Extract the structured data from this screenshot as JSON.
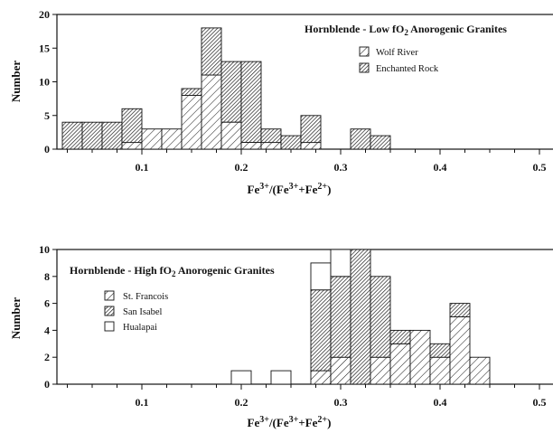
{
  "chart_data": [
    {
      "type": "bar",
      "stacked": true,
      "title": "Hornblende - Low fO",
      "title_sub": "2",
      "title_rest": " Anorogenic Granites",
      "xlabel_parts": [
        "Fe",
        "3+",
        "/(Fe",
        "3+",
        "+Fe",
        "2+",
        ")"
      ],
      "ylabel": "Number",
      "xlim": [
        0.0,
        0.5
      ],
      "ylim": [
        0,
        20
      ],
      "xticks": [
        0.1,
        0.2,
        0.3,
        0.4,
        0.5
      ],
      "xtick_labels": [
        "0.1",
        "0.2",
        "0.3",
        "0.4",
        "0.5"
      ],
      "yticks": [
        0,
        5,
        10,
        15,
        20
      ],
      "ytick_labels": [
        "0",
        "5",
        "10",
        "15",
        "20"
      ],
      "legend_position": "top-right",
      "bin_width": 0.02,
      "x": [
        0.03,
        0.05,
        0.07,
        0.09,
        0.11,
        0.13,
        0.15,
        0.17,
        0.19,
        0.21,
        0.23,
        0.25,
        0.27,
        0.29,
        0.32,
        0.34
      ],
      "series": [
        {
          "name": "Wolf River",
          "pattern": "hatch-sparse",
          "values": [
            0,
            0,
            0,
            1,
            3,
            3,
            8,
            11,
            4,
            1,
            1,
            0,
            1,
            0,
            0,
            0
          ]
        },
        {
          "name": "Enchanted Rock",
          "pattern": "hatch-dense",
          "values": [
            4,
            4,
            4,
            5,
            0,
            0,
            1,
            7,
            9,
            12,
            2,
            2,
            4,
            0,
            3,
            2
          ]
        }
      ]
    },
    {
      "type": "bar",
      "stacked": true,
      "title": "Hornblende - High fO",
      "title_sub": "2",
      "title_rest": " Anorogenic Granites",
      "xlabel_parts": [
        "Fe",
        "3+",
        "/(Fe",
        "3+",
        "+Fe",
        "2+",
        ")"
      ],
      "ylabel": "Number",
      "xlim": [
        0.0,
        0.5
      ],
      "ylim": [
        0,
        10
      ],
      "xticks": [
        0.1,
        0.2,
        0.3,
        0.4,
        0.5
      ],
      "xtick_labels": [
        "0.1",
        "0.2",
        "0.3",
        "0.4",
        "0.5"
      ],
      "yticks": [
        0,
        2,
        4,
        6,
        8,
        10
      ],
      "ytick_labels": [
        "0",
        "2",
        "4",
        "6",
        "8",
        "10"
      ],
      "legend_position": "top-left",
      "bin_width": 0.02,
      "x": [
        0.2,
        0.24,
        0.28,
        0.3,
        0.32,
        0.34,
        0.36,
        0.38,
        0.4,
        0.42,
        0.44
      ],
      "series": [
        {
          "name": "St. Francois",
          "pattern": "hatch-sparse",
          "values": [
            0,
            0,
            1,
            2,
            0,
            2,
            3,
            4,
            2,
            5,
            2
          ]
        },
        {
          "name": "San Isabel",
          "pattern": "hatch-dense",
          "values": [
            0,
            0,
            6,
            6,
            10,
            6,
            1,
            0,
            1,
            1,
            0
          ]
        },
        {
          "name": "Hualapai",
          "pattern": "empty",
          "values": [
            1,
            1,
            2,
            2,
            0,
            0,
            0,
            0,
            0,
            0,
            0
          ]
        }
      ]
    }
  ]
}
